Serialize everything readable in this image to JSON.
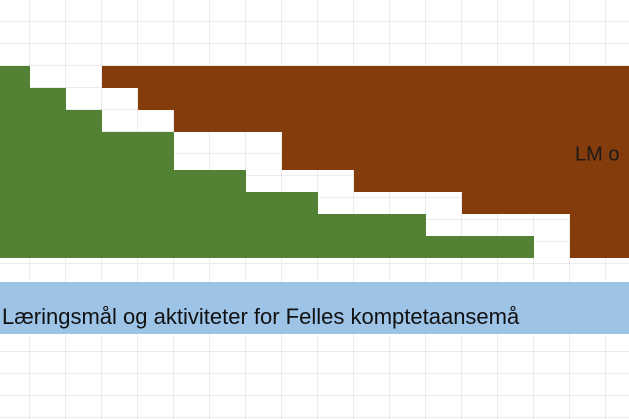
{
  "sheet": {
    "brown_label": "LM o",
    "banner": "Læringsmål og aktiviteter for Felles komptetaansemå"
  }
}
